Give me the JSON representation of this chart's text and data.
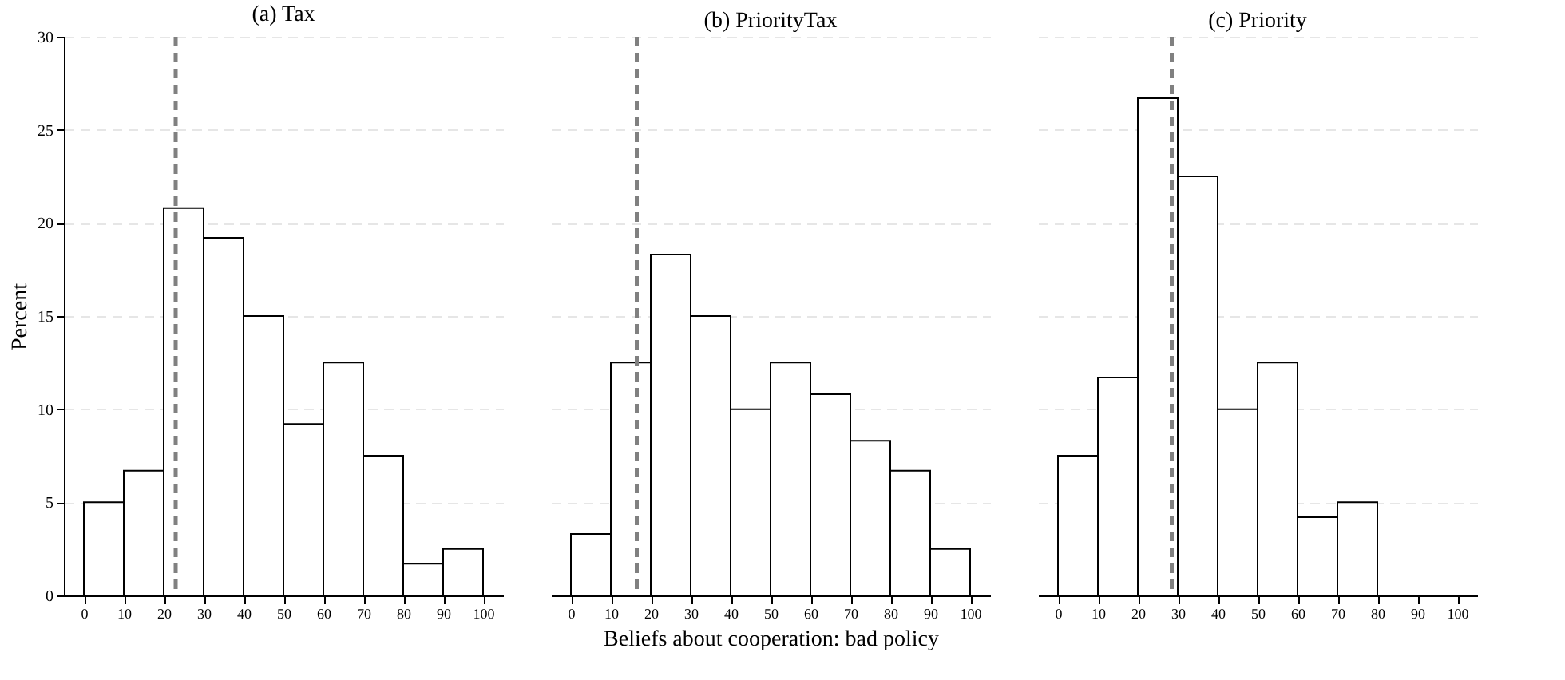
{
  "chart_data": [
    {
      "type": "histogram",
      "title": "(a) Tax",
      "ylabel": "Percent",
      "bins": [
        0,
        10,
        20,
        30,
        40,
        50,
        60,
        70,
        80,
        90,
        100
      ],
      "values": [
        5,
        6.7,
        20.8,
        19.2,
        15,
        9.2,
        12.5,
        7.5,
        1.7,
        2.5
      ],
      "color": "#ffffff",
      "xlim": [
        -5,
        105
      ],
      "xticks": [
        0,
        10,
        20,
        30,
        40,
        50,
        60,
        70,
        80,
        90,
        100
      ],
      "ylim": [
        0,
        30
      ],
      "yticks": [
        0,
        5,
        10,
        15,
        20,
        25,
        30
      ],
      "grid": "y",
      "ref_lines": [
        {
          "axis": "x",
          "value": 23,
          "color": "#808080",
          "line_style": "dashed"
        }
      ]
    },
    {
      "type": "histogram",
      "title": "(b) PriorityTax",
      "xlabel": "Beliefs about cooperation: bad policy",
      "bins": [
        0,
        10,
        20,
        30,
        40,
        50,
        60,
        70,
        80,
        90,
        100
      ],
      "values": [
        3.3,
        12.5,
        18.3,
        15,
        10,
        12.5,
        10.8,
        8.3,
        6.7,
        2.5
      ],
      "color": "#ffffff",
      "xlim": [
        -5,
        105
      ],
      "xticks": [
        0,
        10,
        20,
        30,
        40,
        50,
        60,
        70,
        80,
        90,
        100
      ],
      "ylim": [
        0,
        30
      ],
      "yticks": [
        0,
        5,
        10,
        15,
        20,
        25,
        30
      ],
      "grid": "y",
      "tick_labels": "x",
      "ref_lines": [
        {
          "axis": "x",
          "value": 16.5,
          "color": "#808080",
          "line_style": "dashed"
        }
      ]
    },
    {
      "type": "histogram",
      "title": "(c) Priority",
      "bins": [
        0,
        10,
        20,
        30,
        40,
        50,
        60,
        70,
        80
      ],
      "values": [
        7.5,
        11.7,
        26.7,
        22.5,
        10,
        12.5,
        4.2,
        5
      ],
      "color": "#ffffff",
      "xlim": [
        -5,
        105
      ],
      "xticks": [
        0,
        10,
        20,
        30,
        40,
        50,
        60,
        70,
        80,
        90,
        100
      ],
      "ylim": [
        0,
        30
      ],
      "yticks": [
        0,
        5,
        10,
        15,
        20,
        25,
        30
      ],
      "grid": "y",
      "tick_labels": "x",
      "ref_lines": [
        {
          "axis": "x",
          "value": 28.5,
          "color": "#808080",
          "line_style": "dashed"
        }
      ]
    }
  ]
}
